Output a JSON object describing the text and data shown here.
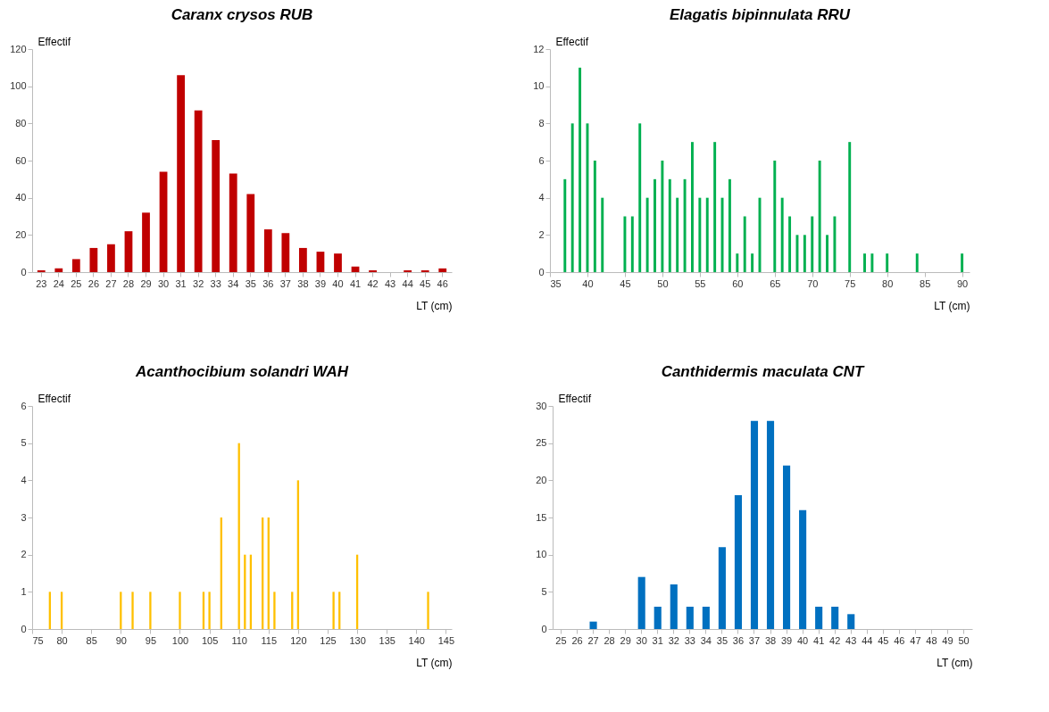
{
  "chart_data": [
    {
      "type": "bar",
      "title": "Caranx crysos RUB",
      "xlabel": "LT (cm)",
      "ylabel": "Effectif",
      "categories": [
        "23",
        "24",
        "25",
        "26",
        "27",
        "28",
        "29",
        "30",
        "31",
        "32",
        "33",
        "34",
        "35",
        "36",
        "37",
        "38",
        "39",
        "40",
        "41",
        "42",
        "43",
        "44",
        "45",
        "46"
      ],
      "values": [
        1,
        2,
        7,
        13,
        15,
        22,
        32,
        54,
        106,
        87,
        71,
        53,
        42,
        23,
        21,
        13,
        11,
        10,
        3,
        1,
        0,
        1,
        1,
        2
      ],
      "color": "#c00000",
      "ylim": [
        0,
        120
      ],
      "yticks": [
        0,
        20,
        40,
        60,
        80,
        100,
        120
      ],
      "grid": false
    },
    {
      "type": "bar",
      "title": "Elagatis bipinnulata RRU",
      "xlabel": "LT (cm)",
      "ylabel": "Effectif",
      "x": [
        37,
        38,
        39,
        40,
        41,
        42,
        45,
        46,
        47,
        48,
        49,
        50,
        51,
        52,
        53,
        54,
        55,
        56,
        57,
        58,
        59,
        60,
        61,
        62,
        63,
        65,
        66,
        67,
        68,
        69,
        70,
        71,
        72,
        73,
        75,
        77,
        78,
        80,
        84,
        90
      ],
      "values": [
        5,
        8,
        11,
        8,
        6,
        4,
        3,
        3,
        8,
        4,
        5,
        6,
        5,
        4,
        5,
        7,
        4,
        4,
        7,
        4,
        5,
        1,
        3,
        1,
        4,
        6,
        4,
        3,
        2,
        2,
        3,
        6,
        2,
        3,
        7,
        1,
        1,
        1,
        1,
        1
      ],
      "color": "#00b050",
      "xlim": [
        35,
        91
      ],
      "xticks": [
        35,
        40,
        45,
        50,
        55,
        60,
        65,
        70,
        75,
        80,
        85,
        90
      ],
      "ylim": [
        0,
        12
      ],
      "yticks": [
        0,
        2,
        4,
        6,
        8,
        10,
        12
      ],
      "grid": false
    },
    {
      "type": "bar",
      "title": "Acanthocibium solandri  WAH",
      "xlabel": "LT (cm)",
      "ylabel": "Effectif",
      "x": [
        78,
        80,
        90,
        92,
        95,
        100,
        104,
        105,
        107,
        110,
        111,
        112,
        114,
        115,
        116,
        119,
        120,
        126,
        127,
        130,
        142
      ],
      "values": [
        1,
        1,
        1,
        1,
        1,
        1,
        1,
        1,
        3,
        5,
        2,
        2,
        3,
        3,
        1,
        1,
        4,
        1,
        1,
        2,
        1
      ],
      "color": "#ffc000",
      "xlim": [
        75,
        146
      ],
      "xticks": [
        75,
        80,
        85,
        90,
        95,
        100,
        105,
        110,
        115,
        120,
        125,
        130,
        135,
        140,
        145
      ],
      "ylim": [
        0,
        6
      ],
      "yticks": [
        0,
        1,
        2,
        3,
        4,
        5,
        6
      ],
      "grid": false
    },
    {
      "type": "bar",
      "title": "Canthidermis maculata CNT",
      "xlabel": "LT (cm)",
      "ylabel": "Effectif",
      "categories": [
        "25",
        "26",
        "27",
        "28",
        "29",
        "30",
        "31",
        "32",
        "33",
        "34",
        "35",
        "36",
        "37",
        "38",
        "39",
        "40",
        "41",
        "42",
        "43",
        "44",
        "45",
        "46",
        "47",
        "48",
        "49",
        "50"
      ],
      "values": [
        0,
        0,
        1,
        0,
        0,
        7,
        3,
        6,
        3,
        3,
        11,
        18,
        28,
        28,
        22,
        16,
        3,
        3,
        2,
        0,
        0,
        0,
        0,
        0,
        0,
        0
      ],
      "color": "#0070c0",
      "ylim": [
        0,
        30
      ],
      "yticks": [
        0,
        5,
        10,
        15,
        20,
        25,
        30
      ],
      "grid": false
    }
  ]
}
